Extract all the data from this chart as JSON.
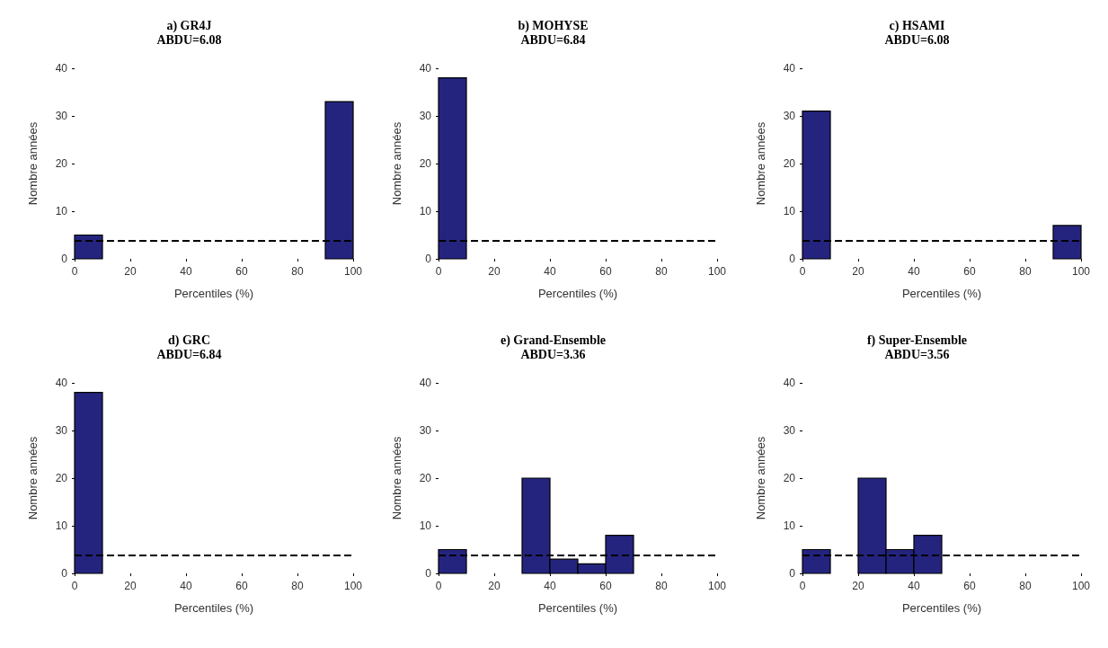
{
  "chart_data": [
    {
      "type": "histogram",
      "title": "a) GR4J",
      "subtitle": "ABDU=6.08",
      "xlabel": "Percentiles (%)",
      "ylabel": "Nombre années",
      "bins": [
        0,
        10,
        20,
        30,
        40,
        50,
        60,
        70,
        80,
        90,
        100
      ],
      "values": [
        5,
        0,
        0,
        0,
        0,
        0,
        0,
        0,
        0,
        33
      ],
      "color": "#24247f",
      "xlim": [
        0,
        100
      ],
      "xticks": [
        0,
        20,
        40,
        60,
        80,
        100
      ],
      "ylim": [
        0,
        40
      ],
      "yticks": [
        0,
        10,
        20,
        30,
        40
      ],
      "grid": false,
      "ref_lines": [
        {
          "axis": "y",
          "value": 3.8,
          "line_style": "dashed",
          "color": "#000000"
        }
      ]
    },
    {
      "type": "histogram",
      "title": "b) MOHYSE",
      "subtitle": "ABDU=6.84",
      "xlabel": "Percentiles (%)",
      "ylabel": "Nombre années",
      "bins": [
        0,
        10,
        20,
        30,
        40,
        50,
        60,
        70,
        80,
        90,
        100
      ],
      "values": [
        38,
        0,
        0,
        0,
        0,
        0,
        0,
        0,
        0,
        0
      ],
      "color": "#24247f",
      "xlim": [
        0,
        100
      ],
      "xticks": [
        0,
        20,
        40,
        60,
        80,
        100
      ],
      "ylim": [
        0,
        40
      ],
      "yticks": [
        0,
        10,
        20,
        30,
        40
      ],
      "grid": false,
      "ref_lines": [
        {
          "axis": "y",
          "value": 3.8,
          "line_style": "dashed",
          "color": "#000000"
        }
      ]
    },
    {
      "type": "histogram",
      "title": "c) HSAMI",
      "subtitle": "ABDU=6.08",
      "xlabel": "Percentiles (%)",
      "ylabel": "Nombre années",
      "bins": [
        0,
        10,
        20,
        30,
        40,
        50,
        60,
        70,
        80,
        90,
        100
      ],
      "values": [
        31,
        0,
        0,
        0,
        0,
        0,
        0,
        0,
        0,
        7
      ],
      "color": "#24247f",
      "xlim": [
        0,
        100
      ],
      "xticks": [
        0,
        20,
        40,
        60,
        80,
        100
      ],
      "ylim": [
        0,
        40
      ],
      "yticks": [
        0,
        10,
        20,
        30,
        40
      ],
      "grid": false,
      "ref_lines": [
        {
          "axis": "y",
          "value": 3.8,
          "line_style": "dashed",
          "color": "#000000"
        }
      ]
    },
    {
      "type": "histogram",
      "title": "d) GRC",
      "subtitle": "ABDU=6.84",
      "xlabel": "Percentiles (%)",
      "ylabel": "Nombre années",
      "bins": [
        0,
        10,
        20,
        30,
        40,
        50,
        60,
        70,
        80,
        90,
        100
      ],
      "values": [
        38,
        0,
        0,
        0,
        0,
        0,
        0,
        0,
        0,
        0
      ],
      "color": "#24247f",
      "xlim": [
        0,
        100
      ],
      "xticks": [
        0,
        20,
        40,
        60,
        80,
        100
      ],
      "ylim": [
        0,
        40
      ],
      "yticks": [
        0,
        10,
        20,
        30,
        40
      ],
      "grid": false,
      "ref_lines": [
        {
          "axis": "y",
          "value": 3.8,
          "line_style": "dashed",
          "color": "#000000"
        }
      ]
    },
    {
      "type": "histogram",
      "title": "e) Grand-Ensemble",
      "subtitle": "ABDU=3.36",
      "xlabel": "Percentiles (%)",
      "ylabel": "Nombre années",
      "bins": [
        0,
        10,
        20,
        30,
        40,
        50,
        60,
        70,
        80,
        90,
        100
      ],
      "values": [
        5,
        0,
        0,
        20,
        3,
        2,
        8,
        0,
        0,
        0
      ],
      "color": "#24247f",
      "xlim": [
        0,
        100
      ],
      "xticks": [
        0,
        20,
        40,
        60,
        80,
        100
      ],
      "ylim": [
        0,
        40
      ],
      "yticks": [
        0,
        10,
        20,
        30,
        40
      ],
      "grid": false,
      "ref_lines": [
        {
          "axis": "y",
          "value": 3.8,
          "line_style": "dashed",
          "color": "#000000"
        }
      ]
    },
    {
      "type": "histogram",
      "title": "f) Super-Ensemble",
      "subtitle": "ABDU=3.56",
      "xlabel": "Percentiles (%)",
      "ylabel": "Nombre années",
      "bins": [
        0,
        10,
        20,
        30,
        40,
        50,
        60,
        70,
        80,
        90,
        100
      ],
      "values": [
        5,
        0,
        20,
        5,
        8,
        0,
        0,
        0,
        0,
        0
      ],
      "color": "#24247f",
      "xlim": [
        0,
        100
      ],
      "xticks": [
        0,
        20,
        40,
        60,
        80,
        100
      ],
      "ylim": [
        0,
        40
      ],
      "yticks": [
        0,
        10,
        20,
        30,
        40
      ],
      "grid": false,
      "ref_lines": [
        {
          "axis": "y",
          "value": 3.8,
          "line_style": "dashed",
          "color": "#000000"
        }
      ]
    }
  ]
}
